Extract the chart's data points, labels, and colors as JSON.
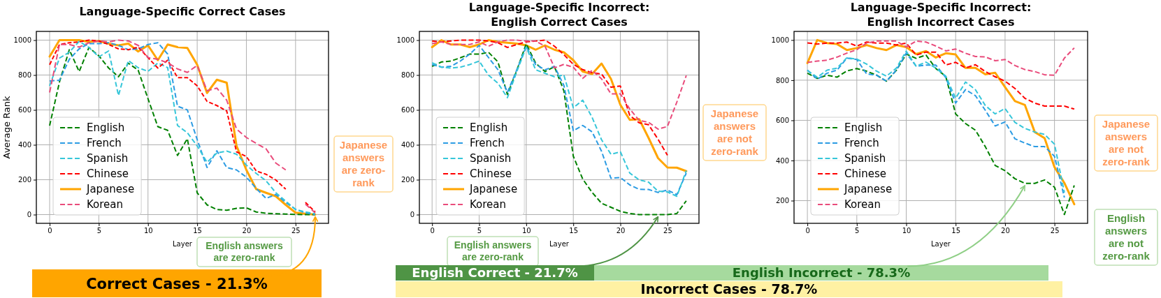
{
  "chart_data": [
    {
      "type": "line",
      "title": "Language-Specific Correct Cases",
      "xlabel": "Layer",
      "ylabel": "Average Rank",
      "x": [
        0,
        1,
        2,
        3,
        4,
        5,
        6,
        7,
        8,
        9,
        10,
        11,
        12,
        13,
        14,
        15,
        16,
        17,
        18,
        19,
        20,
        21,
        22,
        23,
        24,
        25,
        26,
        27
      ],
      "xlim": [
        -1.35,
        28.35
      ],
      "xticks": [
        0,
        5,
        10,
        15,
        20,
        25
      ],
      "ylim": [
        -50,
        1050
      ],
      "yticks": [
        0,
        200,
        400,
        600,
        800,
        1000
      ],
      "grid": true,
      "legend": "bottom left",
      "line_style": "dashed",
      "series": [
        {
          "name": "English",
          "color": "#008000",
          "values": [
            510,
            760,
            945,
            820,
            958,
            910,
            840,
            790,
            868,
            828,
            664,
            504,
            483,
            339,
            435,
            125,
            56,
            29,
            25,
            36,
            39,
            15,
            8,
            5,
            3,
            1,
            0,
            0
          ]
        },
        {
          "name": "French",
          "color": "#2b9be3",
          "values": [
            766,
            770,
            890,
            950,
            980,
            980,
            985,
            970,
            945,
            950,
            975,
            985,
            920,
            621,
            600,
            430,
            270,
            366,
            270,
            256,
            215,
            150,
            93,
            115,
            70,
            30,
            10,
            0
          ]
        },
        {
          "name": "Spanish",
          "color": "#36c6d9",
          "values": [
            738,
            897,
            931,
            993,
            958,
            904,
            938,
            683,
            883,
            842,
            821,
            869,
            842,
            511,
            469,
            394,
            300,
            353,
            364,
            346,
            284,
            236,
            194,
            125,
            77,
            29,
            15,
            5
          ]
        },
        {
          "name": "Chinese",
          "color": "#ff0000",
          "values": [
            859,
            975,
            985,
            990,
            1000,
            995,
            975,
            950,
            945,
            960,
            900,
            840,
            885,
            785,
            785,
            738,
            649,
            625,
            594,
            360,
            333,
            250,
            231,
            198,
            146,
            null,
            70,
            15
          ]
        },
        {
          "name": "Japanese",
          "color": "#ffa500",
          "line_style": "solid",
          "values": [
            906,
            1000,
            1000,
            1000,
            990,
            995,
            980,
            970,
            980,
            935,
            970,
            885,
            975,
            960,
            955,
            859,
            697,
            773,
            756,
            394,
            256,
            146,
            125,
            105,
            56,
            11,
            5,
            0
          ]
        },
        {
          "name": "Korean",
          "color": "#e94b7b",
          "values": [
            700,
            975,
            975,
            960,
            985,
            995,
            990,
            1000,
            995,
            970,
            900,
            890,
            870,
            835,
            815,
            855,
            710,
            725,
            656,
            490,
            442,
            408,
            377,
            295,
            256,
            null,
            60,
            10
          ]
        }
      ],
      "annotations": [
        "Japanese answers are zero-rank",
        "English answers are zero-rank",
        {
          "text": "Correct Cases - 21.3%",
          "x": 27,
          "y": 0
        }
      ]
    },
    {
      "type": "line",
      "title": "Language-Specific Incorrect:\nEnglish Correct Cases",
      "xlabel": "Layer",
      "x": [
        0,
        1,
        2,
        3,
        4,
        5,
        6,
        7,
        8,
        9,
        10,
        11,
        12,
        13,
        14,
        15,
        16,
        17,
        18,
        19,
        20,
        21,
        22,
        23,
        24,
        25,
        26,
        27
      ],
      "xlim": [
        -1.35,
        28.35
      ],
      "xticks": [
        0,
        5,
        10,
        15,
        20,
        25
      ],
      "ylim": [
        -50,
        1050
      ],
      "yticks": [
        0,
        200,
        400,
        600,
        800,
        1000
      ],
      "grid": true,
      "legend": "bottom left",
      "line_style": "dashed",
      "series": [
        {
          "name": "English",
          "color": "#008000",
          "values": [
            850,
            875,
            880,
            899,
            920,
            920,
            930,
            875,
            688,
            827,
            979,
            868,
            820,
            848,
            709,
            335,
            204,
            127,
            65,
            42,
            19,
            6,
            0,
            0,
            0,
            0,
            6,
            79
          ]
        },
        {
          "name": "French",
          "color": "#2b9be3",
          "values": [
            860,
            845,
            850,
            880,
            920,
            970,
            900,
            830,
            700,
            830,
            965,
            860,
            830,
            850,
            740,
            481,
            511,
            474,
            363,
            208,
            213,
            170,
            145,
            144,
            127,
            141,
            114,
            238
          ]
        },
        {
          "name": "Spanish",
          "color": "#36c6d9",
          "values": [
            870,
            845,
            840,
            845,
            860,
            880,
            799,
            753,
            670,
            820,
            960,
            830,
            810,
            790,
            800,
            612,
            656,
            557,
            429,
            346,
            360,
            238,
            199,
            186,
            134,
            130,
            105,
            252
          ]
        },
        {
          "name": "Chinese",
          "color": "#ff0000",
          "values": [
            995,
            990,
            995,
            1000,
            1000,
            1000,
            995,
            985,
            958,
            975,
            990,
            995,
            1000,
            965,
            917,
            861,
            831,
            813,
            806,
            730,
            737,
            568,
            526,
            515,
            432,
            340,
            null,
            null
          ]
        },
        {
          "name": "Japanese",
          "color": "#ffa500",
          "line_style": "solid",
          "values": [
            960,
            1000,
            975,
            975,
            960,
            975,
            1000,
            990,
            985,
            980,
            970,
            945,
            970,
            945,
            930,
            885,
            820,
            806,
            866,
            778,
            629,
            543,
            547,
            439,
            324,
            270,
            269,
            249
          ]
        },
        {
          "name": "Korean",
          "color": "#e94b7b",
          "values": [
            980,
            990,
            975,
            975,
            975,
            990,
            965,
            990,
            1000,
            1000,
            995,
            995,
            965,
            841,
            861,
            845,
            781,
            827,
            778,
            692,
            692,
            605,
            540,
            529,
            490,
            505,
            645,
            797
          ]
        }
      ],
      "annotations": [
        "Japanese answers are not zero-rank",
        "English answers are zero-rank",
        {
          "text": "English Correct - 21.7%",
          "x": 24,
          "y": 0
        },
        "Incorrect Cases - 78.7%"
      ]
    },
    {
      "type": "line",
      "title": "Language-Specific Incorrect:\nEnglish Incorrect Cases",
      "xlabel": "Layer",
      "x": [
        0,
        1,
        2,
        3,
        4,
        5,
        6,
        7,
        8,
        9,
        10,
        11,
        12,
        13,
        14,
        15,
        16,
        17,
        18,
        19,
        20,
        21,
        22,
        23,
        24,
        25,
        26,
        27
      ],
      "xlim": [
        -1.35,
        28.35
      ],
      "xticks": [
        0,
        5,
        10,
        15,
        20,
        25
      ],
      "ylim": [
        87,
        1043
      ],
      "yticks": [
        200,
        400,
        600,
        800,
        1000
      ],
      "grid": true,
      "legend": "bottom left",
      "line_style": "dashed",
      "series": [
        {
          "name": "English",
          "color": "#008000",
          "values": [
            835,
            809,
            825,
            815,
            846,
            858,
            845,
            825,
            795,
            849,
            930,
            909,
            925,
            858,
            819,
            632,
            584,
            551,
            469,
            375,
            349,
            309,
            286,
            286,
            303,
            267,
            131,
            276
          ]
        },
        {
          "name": "French",
          "color": "#2b9be3",
          "values": [
            850,
            805,
            835,
            850,
            910,
            903,
            831,
            825,
            795,
            850,
            935,
            870,
            875,
            875,
            813,
            686,
            753,
            723,
            650,
            572,
            592,
            508,
            487,
            469,
            469,
            421,
            216,
            null
          ]
        },
        {
          "name": "Spanish",
          "color": "#36c6d9",
          "values": [
            849,
            815,
            850,
            860,
            912,
            905,
            880,
            845,
            820,
            860,
            945,
            870,
            890,
            860,
            820,
            710,
            791,
            753,
            674,
            632,
            659,
            590,
            560,
            542,
            530,
            481,
            240,
            null
          ]
        },
        {
          "name": "Chinese",
          "color": "#ff0000",
          "values": [
            986,
            980,
            985,
            985,
            990,
            970,
            990,
            985,
            985,
            975,
            985,
            925,
            940,
            940,
            876,
            889,
            861,
            877,
            843,
            817,
            795,
            759,
            710,
            686,
            671,
            671,
            671,
            656
          ]
        },
        {
          "name": "Japanese",
          "color": "#ffa500",
          "line_style": "solid",
          "values": [
            885,
            1000,
            985,
            980,
            950,
            960,
            975,
            960,
            950,
            975,
            965,
            930,
            945,
            913,
            934,
            928,
            861,
            861,
            829,
            837,
            765,
            696,
            677,
            542,
            511,
            367,
            288,
            182
          ]
        },
        {
          "name": "Korean",
          "color": "#e94b7b",
          "values": [
            888,
            895,
            900,
            915,
            935,
            952,
            985,
            995,
            995,
            995,
            965,
            995,
            990,
            970,
            946,
            955,
            934,
            918,
            916,
            897,
            903,
            873,
            853,
            843,
            827,
            825,
            910,
            961
          ]
        }
      ],
      "annotations": [
        "Japanese answers are not zero-rank",
        "English answers are not zero-rank",
        {
          "text": "English Incorrect - 78.3%",
          "x": 22,
          "y": 285
        }
      ]
    }
  ]
}
